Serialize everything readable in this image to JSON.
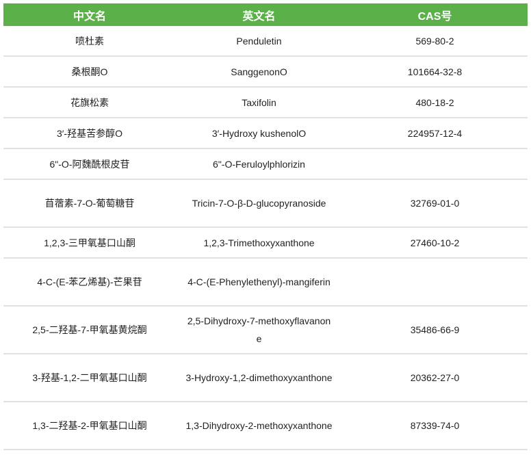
{
  "headers": {
    "chinese_name": "中文名",
    "english_name": "英文名",
    "cas": "CAS号"
  },
  "header_color": "#5cb04a",
  "rows": [
    {
      "cn": "喷杜素",
      "en": "Penduletin",
      "cas": "569-80-2"
    },
    {
      "cn": "桑根酮O",
      "en": "SanggenonO",
      "cas": "101664-32-8"
    },
    {
      "cn": "花旗松素",
      "en": "Taxifolin",
      "cas": "480-18-2"
    },
    {
      "cn": "3′-羟基苦参醇O",
      "en": "3′-Hydroxy kushenolO",
      "cas": "224957-12-4"
    },
    {
      "cn": "6\"-O-阿魏酰根皮苷",
      "en": "6\"-O-Feruloylphlorizin",
      "cas": ""
    },
    {
      "cn": "苜蓿素-7-O-葡萄糖苷",
      "en": "Tricin-7-O-β-D-glucopyranoside",
      "cas": "32769-01-0"
    },
    {
      "cn": "1,2,3-三甲氧基口山酮",
      "en": "1,2,3-Trimethoxyxanthone",
      "cas": "27460-10-2"
    },
    {
      "cn": "4-C-(E-苯乙烯基)-芒果苷",
      "en": "4-C-(E-Phenylethenyl)-mangiferin",
      "cas": ""
    },
    {
      "cn": "2,5-二羟基-7-甲氧基黄烷酮",
      "en": "2,5-Dihydroxy-7-methoxyflavanone",
      "cas": "35486-66-9"
    },
    {
      "cn": "3-羟基-1,2-二甲氧基口山酮",
      "en": "3-Hydroxy-1,2-dimethoxyxanthone",
      "cas": "20362-27-0"
    },
    {
      "cn": "1,3-二羟基-2-甲氧基口山酮",
      "en": "1,3-Dihydroxy-2-methoxyxanthone",
      "cas": "87339-74-0"
    }
  ]
}
